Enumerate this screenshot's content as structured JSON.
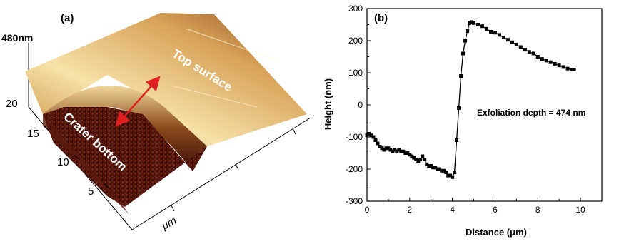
{
  "panel_a": {
    "label": "(a)",
    "z_label": "480nm",
    "y_ticks": [
      "20",
      "15",
      "10",
      "5"
    ],
    "x_unit": "μm",
    "annotations": {
      "top": "Top surface",
      "bottom": "Crater bottom"
    },
    "colors": {
      "arrow": "#e02020",
      "surface_light": "#f6e2a8",
      "surface_mid": "#c98a3c",
      "crater_dark": "#3a0c06"
    }
  },
  "chart_data": {
    "type": "line",
    "panel_label": "(b)",
    "title": "",
    "xlabel": "Distance (μm)",
    "ylabel": "Height (nm)",
    "xlim": [
      0,
      11
    ],
    "ylim": [
      -300,
      300
    ],
    "x_ticks": [
      0,
      2,
      4,
      6,
      8,
      10
    ],
    "y_ticks": [
      -300,
      -200,
      -100,
      0,
      100,
      200,
      300
    ],
    "annotation": "Exfoliation depth = 474 nm",
    "grid": false,
    "color": "#000000",
    "series": [
      {
        "x": [
          0.0,
          0.1,
          0.2,
          0.3,
          0.4,
          0.5,
          0.6,
          0.7,
          0.8,
          0.9,
          1.0,
          1.1,
          1.2,
          1.3,
          1.4,
          1.5,
          1.6,
          1.7,
          1.8,
          1.9,
          2.0,
          2.1,
          2.2,
          2.3,
          2.4,
          2.5,
          2.6,
          2.7,
          2.8,
          2.9,
          3.0,
          3.1,
          3.2,
          3.3,
          3.4,
          3.5,
          3.6,
          3.7,
          3.8,
          3.9,
          4.0,
          4.1,
          4.2,
          4.3,
          4.4,
          4.5,
          4.6,
          4.7,
          4.8,
          4.9,
          5.0,
          5.2,
          5.4,
          5.6,
          5.8,
          6.0,
          6.2,
          6.4,
          6.6,
          6.8,
          7.0,
          7.2,
          7.4,
          7.6,
          7.8,
          8.0,
          8.2,
          8.4,
          8.6,
          8.8,
          9.0,
          9.2,
          9.4,
          9.6,
          9.7
        ],
        "y": [
          -95,
          -90,
          -95,
          -100,
          -110,
          -120,
          -130,
          -135,
          -140,
          -135,
          -135,
          -140,
          -145,
          -140,
          -145,
          -140,
          -145,
          -145,
          -150,
          -150,
          -155,
          -160,
          -165,
          -170,
          -175,
          -170,
          -160,
          -170,
          -185,
          -190,
          -190,
          -195,
          -195,
          -200,
          -200,
          -205,
          -205,
          -210,
          -220,
          -220,
          -225,
          -210,
          -110,
          -10,
          90,
          160,
          200,
          230,
          255,
          258,
          255,
          250,
          245,
          237,
          228,
          225,
          218,
          210,
          203,
          195,
          188,
          180,
          172,
          165,
          160,
          150,
          143,
          138,
          133,
          128,
          123,
          118,
          113,
          110,
          110
        ]
      }
    ]
  }
}
